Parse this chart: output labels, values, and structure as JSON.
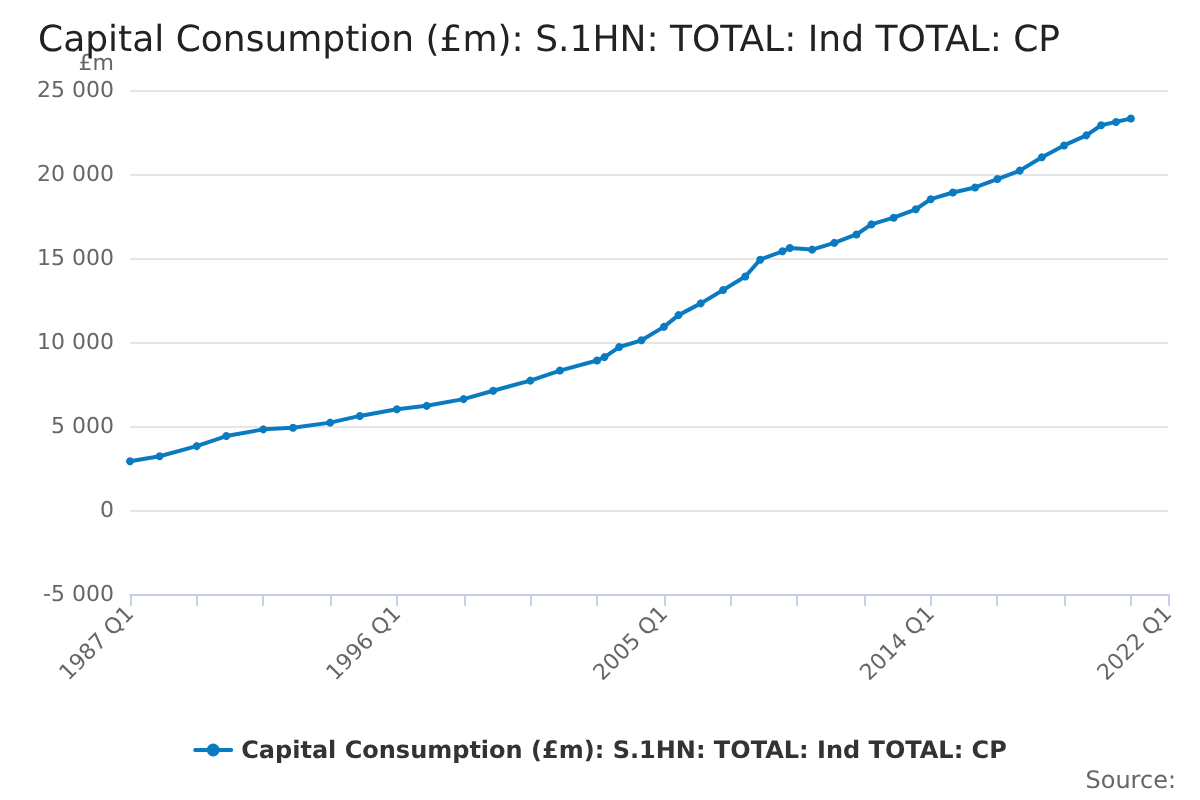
{
  "chart_data": {
    "type": "line",
    "title": "Capital Consumption (£m): S.1HN: TOTAL: Ind TOTAL: CP",
    "ylabel": "£m",
    "annotations": [
      "Source:"
    ],
    "x": [
      "1987-01",
      "1988-01",
      "1989-04",
      "1990-04",
      "1991-07",
      "1992-07",
      "1993-10",
      "1994-10",
      "1996-01",
      "1997-01",
      "1998-04",
      "1999-04",
      "2000-07",
      "2001-07",
      "2002-10",
      "2003-01",
      "2003-07",
      "2004-04",
      "2005-01",
      "2005-07",
      "2006-04",
      "2007-01",
      "2007-10",
      "2008-04",
      "2009-01",
      "2009-04",
      "2010-01",
      "2010-10",
      "2011-07",
      "2012-01",
      "2012-10",
      "2013-07",
      "2014-01",
      "2014-10",
      "2015-07",
      "2016-04",
      "2017-01",
      "2017-10",
      "2018-07",
      "2019-04",
      "2019-10",
      "2020-04",
      "2020-10"
    ],
    "series": [
      {
        "name": "Capital Consumption (£m): S.1HN: TOTAL: Ind TOTAL: CP",
        "color": "#0a7bc1",
        "values": [
          2900,
          3200,
          3800,
          4400,
          4800,
          4900,
          5200,
          5600,
          6000,
          6200,
          6600,
          7100,
          7700,
          8300,
          8900,
          9100,
          9700,
          10100,
          10900,
          11600,
          12300,
          13100,
          13900,
          14900,
          15400,
          15600,
          15500,
          15900,
          16400,
          17000,
          17400,
          17900,
          18500,
          18900,
          19200,
          19700,
          20200,
          21000,
          21700,
          22300,
          22900,
          23100,
          23300
        ]
      }
    ],
    "xlim": [
      "1987-01",
      "2022-01"
    ],
    "xticks": [
      {
        "value": "1987-01",
        "label": "1987 Q1"
      },
      {
        "value": "1989-04",
        "label": null
      },
      {
        "value": "1991-07",
        "label": null
      },
      {
        "value": "1993-10",
        "label": null
      },
      {
        "value": "1996-01",
        "label": "1996 Q1"
      },
      {
        "value": "1998-04",
        "label": null
      },
      {
        "value": "2000-07",
        "label": null
      },
      {
        "value": "2002-10",
        "label": null
      },
      {
        "value": "2005-01",
        "label": "2005 Q1"
      },
      {
        "value": "2007-04",
        "label": null
      },
      {
        "value": "2009-07",
        "label": null
      },
      {
        "value": "2011-10",
        "label": null
      },
      {
        "value": "2014-01",
        "label": "2014 Q1"
      },
      {
        "value": "2016-04",
        "label": null
      },
      {
        "value": "2018-07",
        "label": null
      },
      {
        "value": "2020-10",
        "label": null
      },
      {
        "value": "2022-01",
        "label": "2022 Q1"
      }
    ],
    "ylim": [
      -5000,
      25000
    ],
    "yticks": [
      {
        "value": -5000,
        "label": "-5 000"
      },
      {
        "value": 0,
        "label": "0"
      },
      {
        "value": 5000,
        "label": "5 000"
      },
      {
        "value": 10000,
        "label": "10 000"
      },
      {
        "value": 15000,
        "label": "15 000"
      },
      {
        "value": 20000,
        "label": "20 000"
      },
      {
        "value": 25000,
        "label": "25 000"
      }
    ],
    "grid": "y",
    "legend": "bottom",
    "marker": "circle",
    "line_style": "solid"
  }
}
